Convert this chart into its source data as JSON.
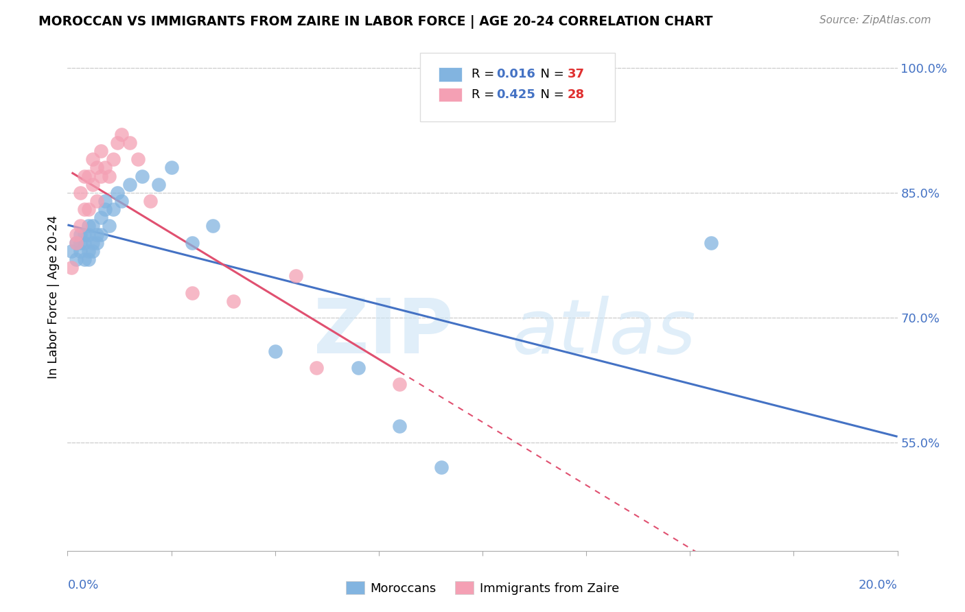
{
  "title": "MOROCCAN VS IMMIGRANTS FROM ZAIRE IN LABOR FORCE | AGE 20-24 CORRELATION CHART",
  "source": "Source: ZipAtlas.com",
  "ylabel": "In Labor Force | Age 20-24",
  "xlim": [
    0.0,
    0.2
  ],
  "ylim": [
    0.42,
    1.03
  ],
  "moroccan_R": "0.016",
  "moroccan_N": "37",
  "zaire_R": "0.425",
  "zaire_N": "28",
  "moroccan_color": "#82b4e0",
  "zaire_color": "#f4a0b4",
  "moroccan_line_color": "#4472c4",
  "zaire_line_color": "#e05070",
  "legend_moroccan": "Moroccans",
  "legend_zaire": "Immigrants from Zaire",
  "moroccan_x": [
    0.001,
    0.002,
    0.002,
    0.003,
    0.003,
    0.003,
    0.004,
    0.004,
    0.004,
    0.005,
    0.005,
    0.005,
    0.005,
    0.006,
    0.006,
    0.006,
    0.007,
    0.007,
    0.008,
    0.008,
    0.009,
    0.009,
    0.01,
    0.011,
    0.012,
    0.013,
    0.015,
    0.018,
    0.022,
    0.025,
    0.03,
    0.035,
    0.05,
    0.07,
    0.08,
    0.155,
    0.09
  ],
  "moroccan_y": [
    0.78,
    0.77,
    0.79,
    0.78,
    0.79,
    0.8,
    0.77,
    0.79,
    0.8,
    0.77,
    0.78,
    0.8,
    0.81,
    0.78,
    0.79,
    0.81,
    0.79,
    0.8,
    0.8,
    0.82,
    0.83,
    0.84,
    0.81,
    0.83,
    0.85,
    0.84,
    0.86,
    0.87,
    0.86,
    0.88,
    0.79,
    0.81,
    0.66,
    0.64,
    0.57,
    0.79,
    0.52
  ],
  "zaire_x": [
    0.001,
    0.002,
    0.002,
    0.003,
    0.003,
    0.004,
    0.004,
    0.005,
    0.005,
    0.006,
    0.006,
    0.007,
    0.007,
    0.008,
    0.008,
    0.009,
    0.01,
    0.011,
    0.012,
    0.013,
    0.015,
    0.017,
    0.02,
    0.03,
    0.04,
    0.055,
    0.06,
    0.08
  ],
  "zaire_y": [
    0.76,
    0.79,
    0.8,
    0.81,
    0.85,
    0.83,
    0.87,
    0.83,
    0.87,
    0.86,
    0.89,
    0.84,
    0.88,
    0.87,
    0.9,
    0.88,
    0.87,
    0.89,
    0.91,
    0.92,
    0.91,
    0.89,
    0.84,
    0.73,
    0.72,
    0.75,
    0.64,
    0.62
  ],
  "grid_color": "#cccccc",
  "background_color": "#ffffff",
  "ytick_labels": [
    "55.0%",
    "70.0%",
    "85.0%",
    "100.0%"
  ],
  "ytick_values": [
    0.55,
    0.7,
    0.85,
    1.0
  ]
}
